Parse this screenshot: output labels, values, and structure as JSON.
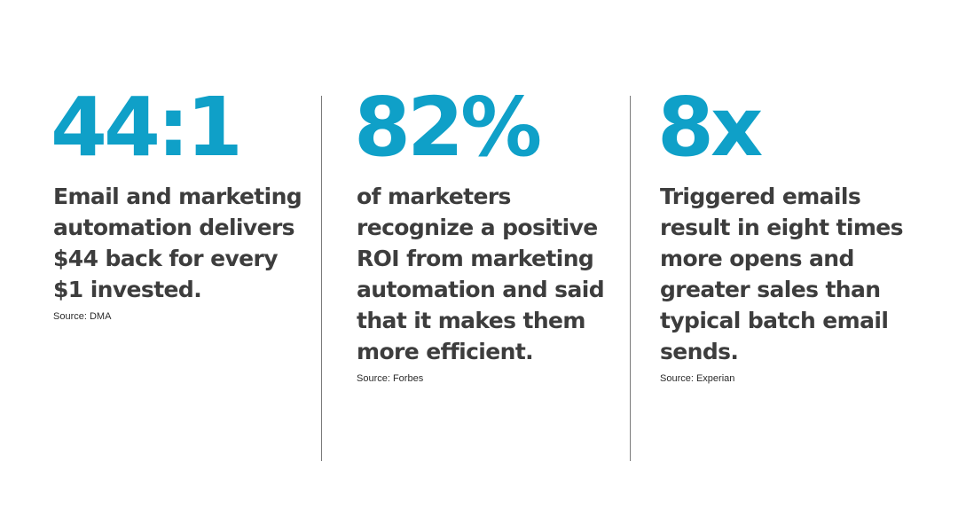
{
  "stats": [
    {
      "value": "44:1",
      "description": "Email and marketing automation delivers $44 back for every $1 invested.",
      "source": "Source: DMA"
    },
    {
      "value": "82%",
      "description": "of marketers recognize a positive ROI from marketing automation and said that it makes them more efficient.",
      "source": "Source: Forbes"
    },
    {
      "value": "8x",
      "description": "Triggered emails result in eight times more opens and greater sales than typical batch email sends.",
      "source": "Source: Experian"
    }
  ],
  "colors": {
    "accent": "#0fa0c8",
    "text": "#3d3d3d",
    "divider": "#7a7a7a"
  }
}
